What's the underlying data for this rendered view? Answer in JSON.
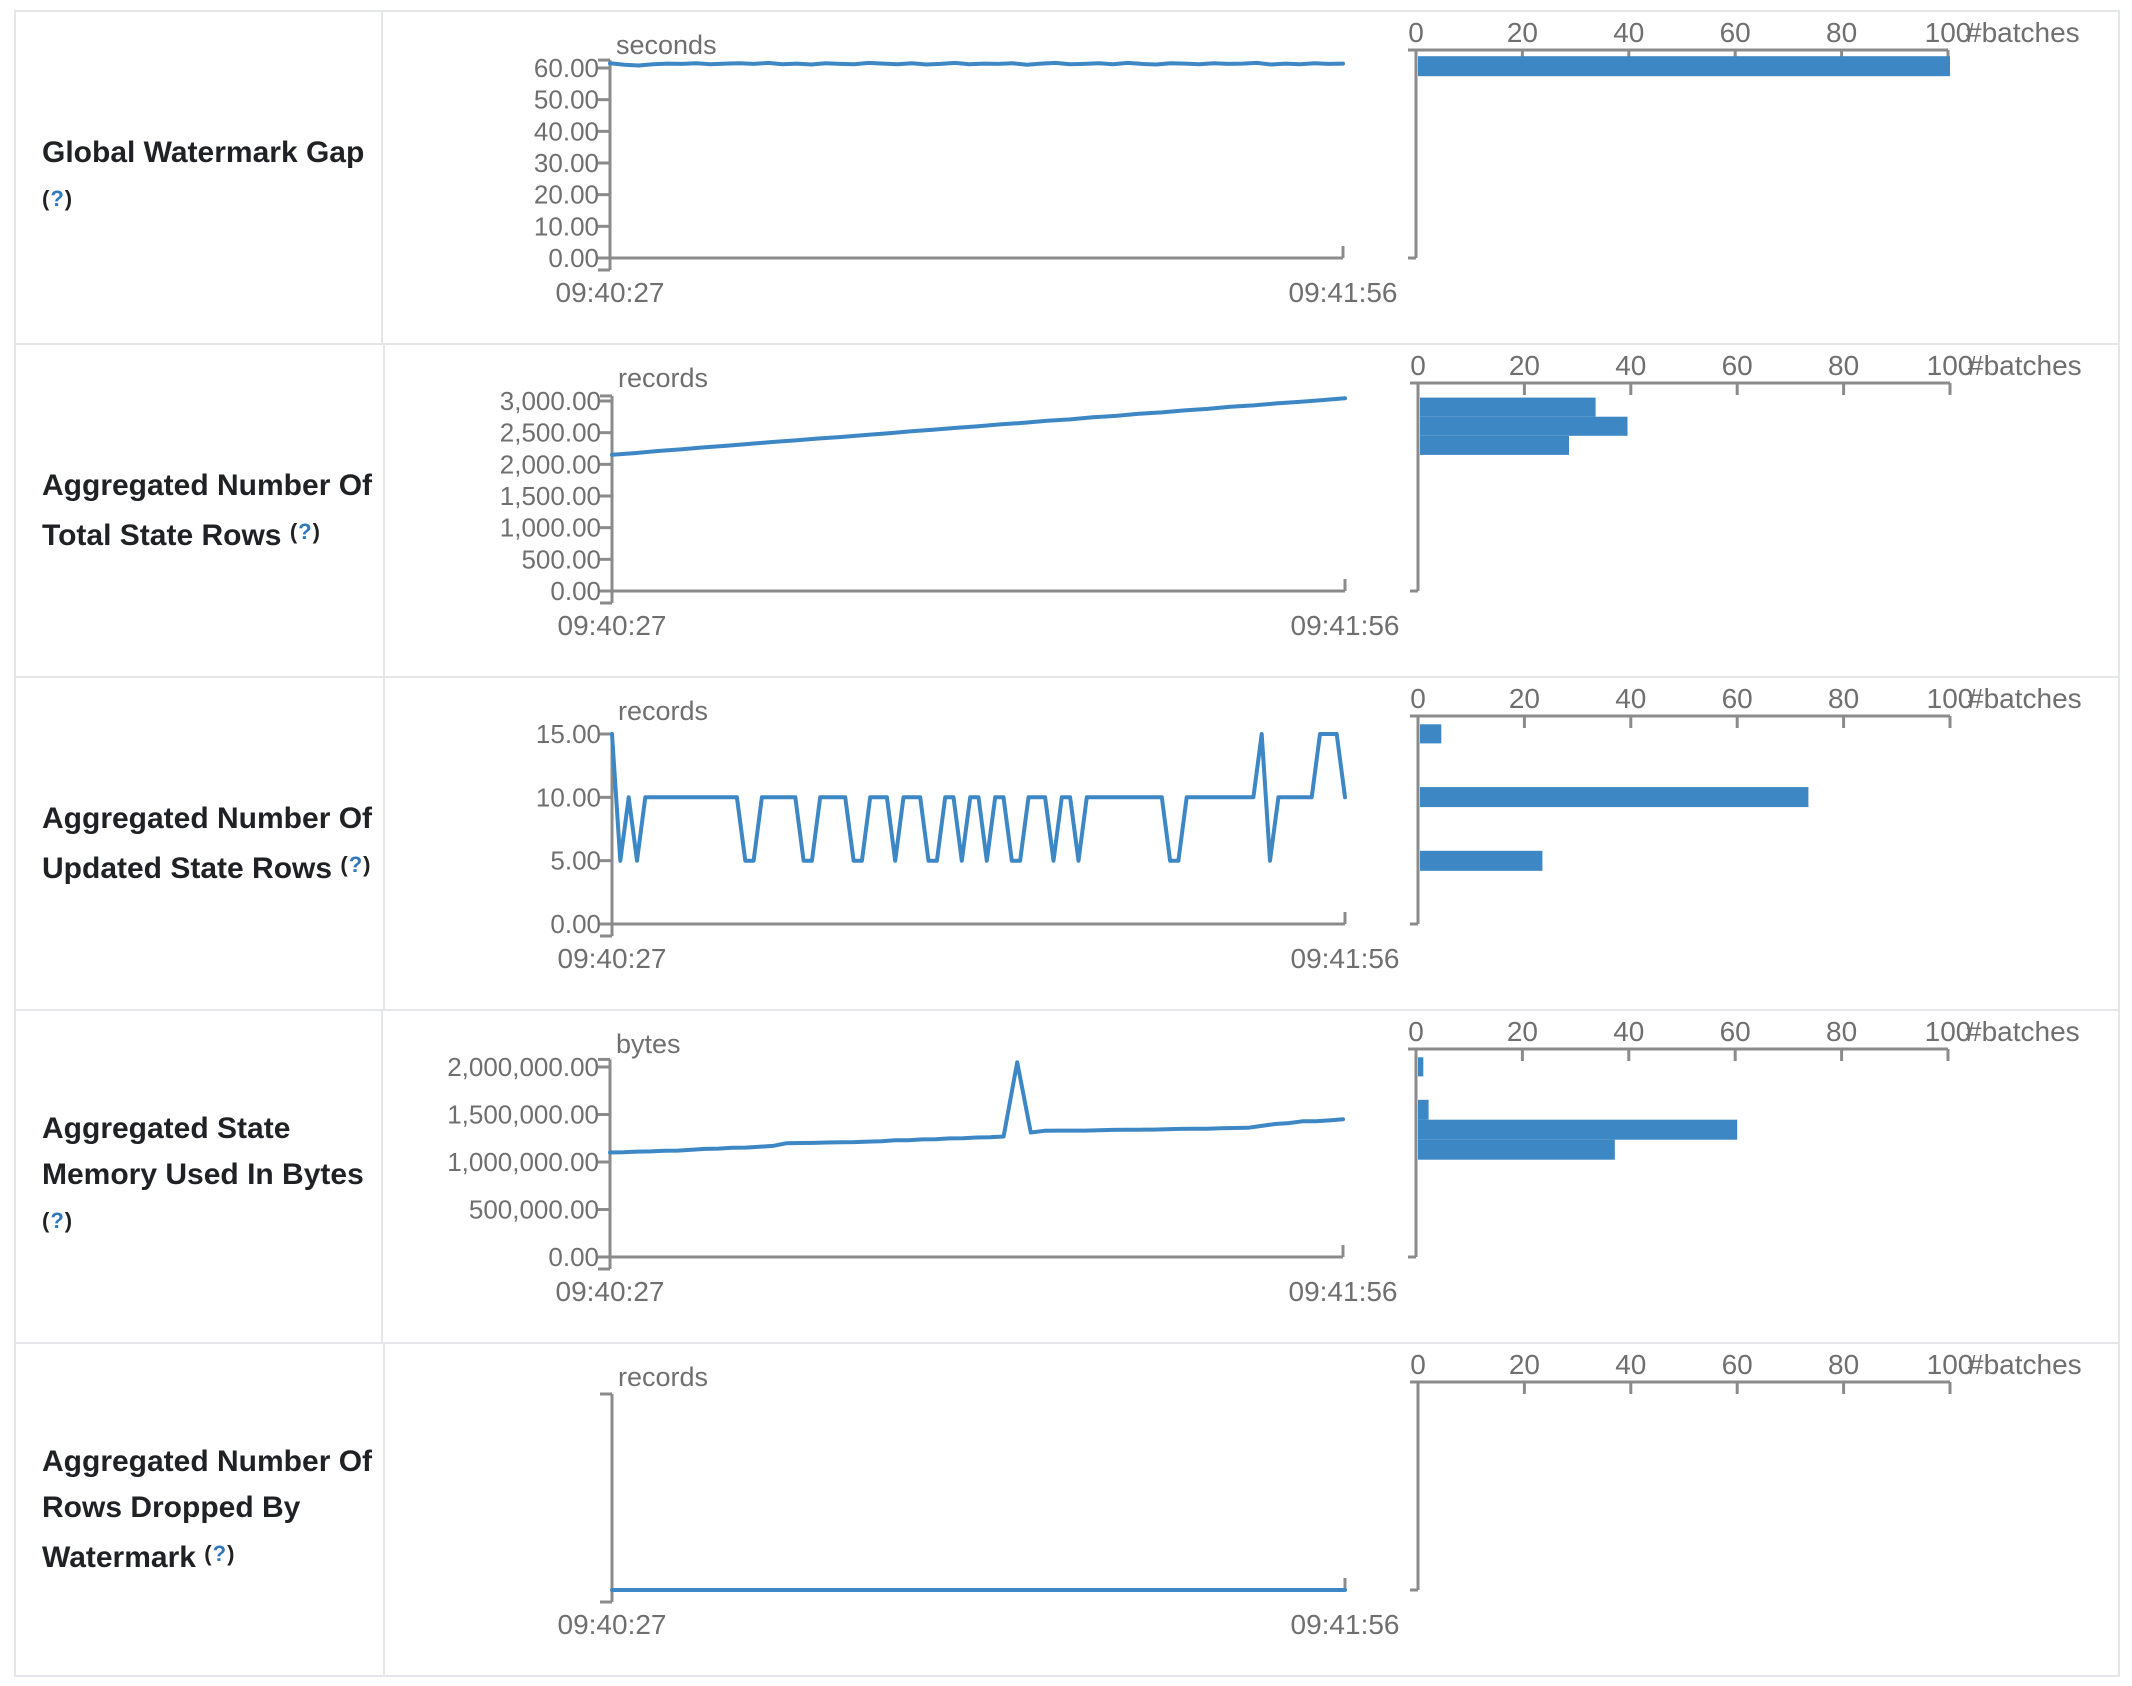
{
  "page": {
    "x_start_label": "09:40:27",
    "x_end_label": "09:41:56",
    "batches_axis_label": "#batches",
    "help_open": "(",
    "help_mark": "?",
    "help_close": ")"
  },
  "colors": {
    "accent_blue": "#3d87c4",
    "axis_gray": "#8b8b8b",
    "tick_text_gray": "#6f6f6f",
    "label_text": "#1f2125",
    "border_gray": "#e4e6e9",
    "help_blue": "#2f78bc"
  },
  "chart_data": [
    {
      "metric": "Global Watermark Gap",
      "metric_lines": [
        {
          "text": "Global Watermark Gap"
        },
        {
          "text": "",
          "help": true
        }
      ],
      "timeline": {
        "type": "line",
        "unit": "seconds",
        "x_range": [
          "09:40:27",
          "09:41:56"
        ],
        "y_ticks": [
          {
            "v": 60,
            "t": "60.00"
          },
          {
            "v": 50,
            "t": "50.00"
          },
          {
            "v": 40,
            "t": "40.00"
          },
          {
            "v": 30,
            "t": "30.00"
          },
          {
            "v": 20,
            "t": "20.00"
          },
          {
            "v": 10,
            "t": "10.00"
          },
          {
            "v": 0,
            "t": "0.00"
          }
        ],
        "y_max": 60,
        "axis_top": 62.5,
        "values": [
          61.5,
          61.0,
          60.8,
          61.2,
          61.4,
          61.3,
          61.5,
          61.2,
          61.4,
          61.5,
          61.3,
          61.6,
          61.2,
          61.4,
          61.1,
          61.5,
          61.3,
          61.2,
          61.6,
          61.4,
          61.2,
          61.5,
          61.1,
          61.3,
          61.6,
          61.2,
          61.4,
          61.3,
          61.5,
          61.0,
          61.4,
          61.6,
          61.2,
          61.3,
          61.5,
          61.2,
          61.6,
          61.3,
          61.1,
          61.5,
          61.4,
          61.2,
          61.5,
          61.3,
          61.4,
          61.6,
          61.1,
          61.4,
          61.2,
          61.5,
          61.3,
          61.4
        ]
      },
      "histogram": {
        "type": "bar",
        "orientation": "horizontal",
        "x_ticks": [
          0,
          20,
          40,
          60,
          80,
          100
        ],
        "x_label": "#batches",
        "bars": [
          {
            "count": 100,
            "value": "~61 s",
            "top_pct": 3.0,
            "height_pct": 9.6
          }
        ]
      }
    },
    {
      "metric": "Aggregated Number Of Total State Rows",
      "metric_lines": [
        {
          "text": "Aggregated Number Of"
        },
        {
          "text": "Total State Rows",
          "help": true
        }
      ],
      "timeline": {
        "type": "line",
        "unit": "records",
        "x_range": [
          "09:40:27",
          "09:41:56"
        ],
        "y_ticks": [
          {
            "v": 3000,
            "t": "3,000.00"
          },
          {
            "v": 2500,
            "t": "2,500.00"
          },
          {
            "v": 2000,
            "t": "2,000.00"
          },
          {
            "v": 1500,
            "t": "1,500.00"
          },
          {
            "v": 1000,
            "t": "1,000.00"
          },
          {
            "v": 500,
            "t": "500.00"
          },
          {
            "v": 0,
            "t": "0.00"
          }
        ],
        "y_max": 3000,
        "axis_top": 3080,
        "values": [
          2150,
          2178,
          2210,
          2235,
          2268,
          2295,
          2322,
          2352,
          2378,
          2408,
          2432,
          2462,
          2488,
          2520,
          2545,
          2575,
          2600,
          2632,
          2655,
          2688,
          2710,
          2742,
          2765,
          2798,
          2820,
          2852,
          2875,
          2908,
          2930,
          2962,
          2985,
          3015,
          3042
        ]
      },
      "histogram": {
        "type": "bar",
        "orientation": "horizontal",
        "x_ticks": [
          0,
          20,
          40,
          60,
          80,
          100
        ],
        "x_label": "#batches",
        "bars": [
          {
            "count": 33,
            "value": "~2,900 records",
            "top_pct": 7.0,
            "height_pct": 9.2
          },
          {
            "count": 39,
            "value": "~2,600 records",
            "top_pct": 16.2,
            "height_pct": 9.2
          },
          {
            "count": 28,
            "value": "~2,300 records",
            "top_pct": 25.4,
            "height_pct": 9.2
          }
        ]
      }
    },
    {
      "metric": "Aggregated Number Of Updated State Rows",
      "metric_lines": [
        {
          "text": "Aggregated Number Of"
        },
        {
          "text": "Updated State Rows",
          "help": true
        }
      ],
      "timeline": {
        "type": "line",
        "unit": "records",
        "x_range": [
          "09:40:27",
          "09:41:56"
        ],
        "y_ticks": [
          {
            "v": 15,
            "t": "15.00"
          },
          {
            "v": 10,
            "t": "10.00"
          },
          {
            "v": 5,
            "t": "5.00"
          },
          {
            "v": 0,
            "t": "0.00"
          }
        ],
        "y_max": 15,
        "axis_top": 15,
        "values": [
          15,
          5,
          10,
          5,
          10,
          10,
          10,
          10,
          10,
          10,
          10,
          10,
          10,
          10,
          10,
          10,
          5,
          5,
          10,
          10,
          10,
          10,
          10,
          5,
          5,
          10,
          10,
          10,
          10,
          5,
          5,
          10,
          10,
          10,
          5,
          10,
          10,
          10,
          5,
          5,
          10,
          10,
          5,
          10,
          10,
          5,
          10,
          10,
          5,
          5,
          10,
          10,
          10,
          5,
          10,
          10,
          5,
          10,
          10,
          10,
          10,
          10,
          10,
          10,
          10,
          10,
          10,
          5,
          5,
          10,
          10,
          10,
          10,
          10,
          10,
          10,
          10,
          10,
          15,
          5,
          10,
          10,
          10,
          10,
          10,
          15,
          15,
          15,
          10
        ]
      },
      "histogram": {
        "type": "bar",
        "orientation": "horizontal",
        "x_ticks": [
          0,
          20,
          40,
          60,
          80,
          100
        ],
        "x_label": "#batches",
        "bars": [
          {
            "count": 4,
            "value": "15 records",
            "top_pct": 4.0,
            "height_pct": 9.2
          },
          {
            "count": 73,
            "value": "10 records",
            "top_pct": 34.2,
            "height_pct": 9.6
          },
          {
            "count": 23,
            "value": "5 records",
            "top_pct": 64.8,
            "height_pct": 9.6
          }
        ]
      }
    },
    {
      "metric": "Aggregated State Memory Used In Bytes",
      "metric_lines": [
        {
          "text": "Aggregated State"
        },
        {
          "text": "Memory Used In Bytes"
        },
        {
          "text": "",
          "help": true
        }
      ],
      "timeline": {
        "type": "line",
        "unit": "bytes",
        "x_range": [
          "09:40:27",
          "09:41:56"
        ],
        "y_ticks": [
          {
            "v": 2000000,
            "t": "2,000,000.00"
          },
          {
            "v": 1500000,
            "t": "1,500,000.00"
          },
          {
            "v": 1000000,
            "t": "1,000,000.00"
          },
          {
            "v": 500000,
            "t": "500,000.00"
          },
          {
            "v": 0,
            "t": "0.00"
          }
        ],
        "y_max": 2000000,
        "axis_top": 2080000,
        "values": [
          1100000,
          1103000,
          1110000,
          1112000,
          1118000,
          1120000,
          1128000,
          1138000,
          1141000,
          1150000,
          1152000,
          1160000,
          1170000,
          1198000,
          1200000,
          1201000,
          1205000,
          1208000,
          1210000,
          1215000,
          1218000,
          1228000,
          1230000,
          1238000,
          1240000,
          1248000,
          1250000,
          1258000,
          1260000,
          1268000,
          2050000,
          1310000,
          1328000,
          1330000,
          1330000,
          1331000,
          1335000,
          1338000,
          1340000,
          1340000,
          1341000,
          1345000,
          1348000,
          1350000,
          1350000,
          1355000,
          1358000,
          1360000,
          1380000,
          1400000,
          1410000,
          1428000,
          1430000,
          1438000,
          1450000
        ]
      },
      "histogram": {
        "type": "bar",
        "orientation": "horizontal",
        "x_ticks": [
          0,
          20,
          40,
          60,
          80,
          100
        ],
        "x_label": "#batches",
        "bars": [
          {
            "count": 1,
            "value": "~2,000,000 bytes",
            "top_pct": 4.0,
            "height_pct": 9.2
          },
          {
            "count": 2,
            "value": "~1,550,000 bytes",
            "top_pct": 24.4,
            "height_pct": 9.6
          },
          {
            "count": 60,
            "value": "~1,350,000 bytes",
            "top_pct": 34.0,
            "height_pct": 9.6
          },
          {
            "count": 37,
            "value": "~1,150,000 bytes",
            "top_pct": 43.6,
            "height_pct": 9.6
          }
        ]
      }
    },
    {
      "metric": "Aggregated Number Of Rows Dropped By Watermark",
      "metric_lines": [
        {
          "text": "Aggregated Number Of"
        },
        {
          "text": "Rows Dropped By"
        },
        {
          "text": "Watermark",
          "help": true
        }
      ],
      "timeline": {
        "type": "line",
        "unit": "records",
        "x_range": [
          "09:40:27",
          "09:41:56"
        ],
        "y_ticks": [],
        "y_max": 1,
        "axis_top": null,
        "values": [
          0,
          0,
          0,
          0,
          0,
          0,
          0,
          0,
          0,
          0,
          0,
          0
        ]
      },
      "histogram": {
        "type": "bar",
        "orientation": "horizontal",
        "x_ticks": [
          0,
          20,
          40,
          60,
          80,
          100
        ],
        "x_label": "#batches",
        "bars": []
      }
    }
  ]
}
